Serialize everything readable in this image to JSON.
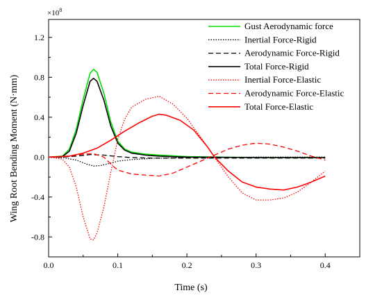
{
  "chart_data": {
    "type": "line",
    "xlabel": "Time (s)",
    "ylabel": "Wing Root Bending Moment (N·mm)",
    "y_exponent_label": "×10",
    "y_exponent_power": "8",
    "xlim": [
      0,
      0.45
    ],
    "ylim": [
      -1.0,
      1.38
    ],
    "x_ticks": [
      0.0,
      0.1,
      0.2,
      0.3,
      0.4
    ],
    "x_tick_labels": [
      "0.0",
      "0.1",
      "0.2",
      "0.3",
      "0.4"
    ],
    "y_ticks": [
      -0.8,
      -0.4,
      0.0,
      0.4,
      0.8,
      1.2
    ],
    "y_tick_labels": [
      "-0.8",
      "-0.4",
      "0.0",
      "0.4",
      "0.8",
      "1.2"
    ],
    "grid": false,
    "legend_position": "top-right",
    "series": [
      {
        "name": "Gust Aerodynamic force",
        "color": "#00dd00",
        "dash": "solid",
        "points": [
          [
            0,
            0
          ],
          [
            0.02,
            0.01
          ],
          [
            0.03,
            0.08
          ],
          [
            0.04,
            0.28
          ],
          [
            0.05,
            0.58
          ],
          [
            0.06,
            0.84
          ],
          [
            0.065,
            0.88
          ],
          [
            0.07,
            0.85
          ],
          [
            0.08,
            0.64
          ],
          [
            0.09,
            0.35
          ],
          [
            0.1,
            0.16
          ],
          [
            0.11,
            0.08
          ],
          [
            0.12,
            0.05
          ],
          [
            0.14,
            0.03
          ],
          [
            0.16,
            0.02
          ],
          [
            0.2,
            0.005
          ],
          [
            0.25,
            0.0
          ],
          [
            0.3,
            -0.005
          ],
          [
            0.35,
            -0.005
          ],
          [
            0.4,
            -0.005
          ]
        ]
      },
      {
        "name": "Inertial Force-Rigid",
        "color": "#000000",
        "dash": "dotted",
        "points": [
          [
            0,
            0
          ],
          [
            0.02,
            -0.005
          ],
          [
            0.04,
            -0.03
          ],
          [
            0.055,
            -0.07
          ],
          [
            0.065,
            -0.09
          ],
          [
            0.075,
            -0.085
          ],
          [
            0.09,
            -0.06
          ],
          [
            0.1,
            -0.04
          ],
          [
            0.12,
            -0.025
          ],
          [
            0.15,
            -0.012
          ],
          [
            0.2,
            -0.005
          ],
          [
            0.3,
            0.0
          ],
          [
            0.4,
            0.0
          ]
        ]
      },
      {
        "name": "Aerodynamic Force-Rigid",
        "color": "#000000",
        "dash": "dashed",
        "points": [
          [
            0,
            0
          ],
          [
            0.02,
            0.0
          ],
          [
            0.04,
            0.01
          ],
          [
            0.06,
            0.025
          ],
          [
            0.08,
            0.02
          ],
          [
            0.1,
            0.005
          ],
          [
            0.12,
            -0.005
          ],
          [
            0.15,
            -0.01
          ],
          [
            0.2,
            -0.01
          ],
          [
            0.3,
            -0.01
          ],
          [
            0.4,
            -0.01
          ]
        ]
      },
      {
        "name": "Total Force-Rigid",
        "color": "#000000",
        "dash": "solid",
        "points": [
          [
            0,
            0
          ],
          [
            0.02,
            0.005
          ],
          [
            0.03,
            0.06
          ],
          [
            0.04,
            0.24
          ],
          [
            0.05,
            0.52
          ],
          [
            0.06,
            0.76
          ],
          [
            0.065,
            0.79
          ],
          [
            0.07,
            0.76
          ],
          [
            0.08,
            0.57
          ],
          [
            0.09,
            0.31
          ],
          [
            0.1,
            0.14
          ],
          [
            0.11,
            0.07
          ],
          [
            0.12,
            0.04
          ],
          [
            0.14,
            0.02
          ],
          [
            0.16,
            0.01
          ],
          [
            0.2,
            0.0
          ],
          [
            0.3,
            -0.005
          ],
          [
            0.4,
            -0.005
          ]
        ]
      },
      {
        "name": "Inertial Force-Elastic",
        "color": "#ff0000",
        "dash": "dotted",
        "points": [
          [
            0,
            0
          ],
          [
            0.02,
            -0.02
          ],
          [
            0.03,
            -0.1
          ],
          [
            0.04,
            -0.3
          ],
          [
            0.05,
            -0.6
          ],
          [
            0.06,
            -0.82
          ],
          [
            0.065,
            -0.83
          ],
          [
            0.07,
            -0.76
          ],
          [
            0.08,
            -0.5
          ],
          [
            0.09,
            -0.15
          ],
          [
            0.1,
            0.18
          ],
          [
            0.11,
            0.38
          ],
          [
            0.12,
            0.5
          ],
          [
            0.14,
            0.58
          ],
          [
            0.16,
            0.61
          ],
          [
            0.18,
            0.53
          ],
          [
            0.2,
            0.39
          ],
          [
            0.22,
            0.2
          ],
          [
            0.24,
            0.0
          ],
          [
            0.26,
            -0.2
          ],
          [
            0.28,
            -0.36
          ],
          [
            0.3,
            -0.43
          ],
          [
            0.32,
            -0.43
          ],
          [
            0.34,
            -0.41
          ],
          [
            0.36,
            -0.35
          ],
          [
            0.38,
            -0.25
          ],
          [
            0.4,
            -0.14
          ]
        ]
      },
      {
        "name": "Aerodynamic Force-Elastic",
        "color": "#ff0000",
        "dash": "dashed",
        "points": [
          [
            0,
            0
          ],
          [
            0.03,
            0.01
          ],
          [
            0.05,
            0.03
          ],
          [
            0.065,
            0.035
          ],
          [
            0.08,
            0.0
          ],
          [
            0.09,
            -0.07
          ],
          [
            0.1,
            -0.13
          ],
          [
            0.12,
            -0.17
          ],
          [
            0.16,
            -0.19
          ],
          [
            0.18,
            -0.16
          ],
          [
            0.2,
            -0.1
          ],
          [
            0.22,
            -0.04
          ],
          [
            0.24,
            0.02
          ],
          [
            0.26,
            0.08
          ],
          [
            0.28,
            0.12
          ],
          [
            0.3,
            0.14
          ],
          [
            0.32,
            0.13
          ],
          [
            0.34,
            0.1
          ],
          [
            0.36,
            0.06
          ],
          [
            0.38,
            0.01
          ],
          [
            0.4,
            -0.03
          ]
        ]
      },
      {
        "name": "Total Force-Elastic",
        "color": "#ff0000",
        "dash": "solid",
        "points": [
          [
            0,
            0
          ],
          [
            0.03,
            0.01
          ],
          [
            0.05,
            0.04
          ],
          [
            0.07,
            0.09
          ],
          [
            0.09,
            0.17
          ],
          [
            0.11,
            0.26
          ],
          [
            0.13,
            0.34
          ],
          [
            0.15,
            0.41
          ],
          [
            0.16,
            0.43
          ],
          [
            0.17,
            0.42
          ],
          [
            0.19,
            0.37
          ],
          [
            0.21,
            0.27
          ],
          [
            0.23,
            0.1
          ],
          [
            0.24,
            0.0
          ],
          [
            0.26,
            -0.14
          ],
          [
            0.28,
            -0.25
          ],
          [
            0.3,
            -0.3
          ],
          [
            0.32,
            -0.32
          ],
          [
            0.34,
            -0.33
          ],
          [
            0.36,
            -0.3
          ],
          [
            0.38,
            -0.25
          ],
          [
            0.4,
            -0.19
          ]
        ]
      }
    ]
  }
}
